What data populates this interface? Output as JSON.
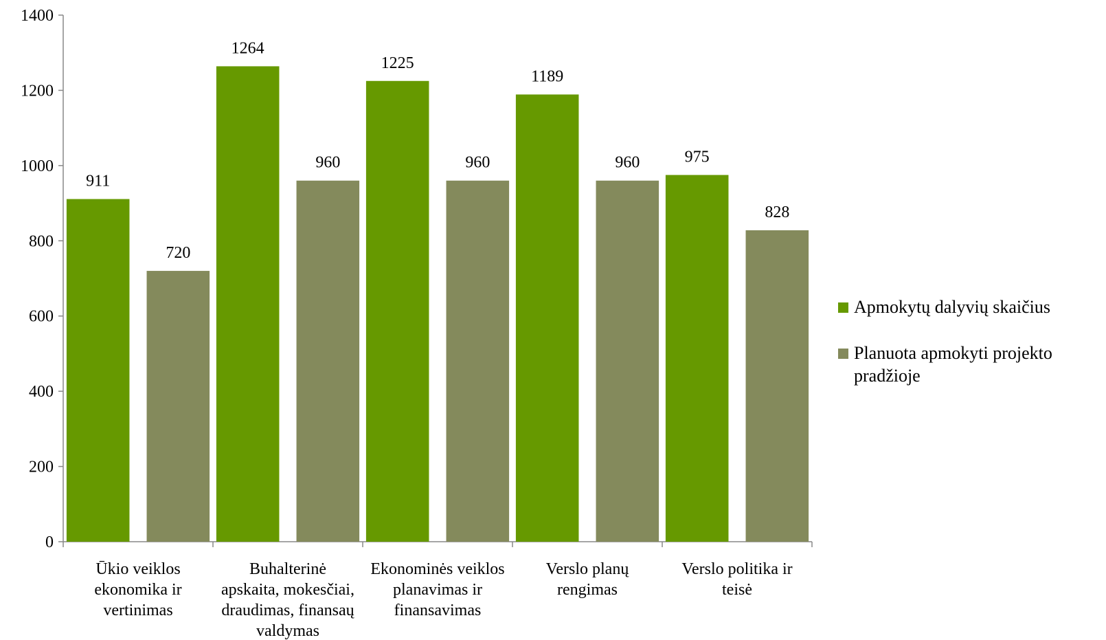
{
  "chart_data": {
    "type": "bar",
    "title": "",
    "xlabel": "",
    "ylabel": "",
    "ylim": [
      0,
      1400
    ],
    "yticks": [
      0,
      200,
      400,
      600,
      800,
      1000,
      1200,
      1400
    ],
    "grid": false,
    "legend_position": "right",
    "categories": [
      [
        "Ūkio veiklos",
        "ekonomika ir",
        "vertinimas"
      ],
      [
        "Buhalterinė",
        "apskaita, mokesčiai,",
        "draudimas, finansaų",
        "valdymas"
      ],
      [
        "Ekonominės veiklos",
        "planavimas ir",
        "finansavimas"
      ],
      [
        "Verslo planų",
        "rengimas"
      ],
      [
        "Verslo politika ir",
        "teisė"
      ]
    ],
    "series": [
      {
        "name": "Apmokytų dalyvių skaičius",
        "color": "#669900",
        "values": [
          911,
          1264,
          1225,
          1189,
          975
        ]
      },
      {
        "name_lines": [
          "Planuota apmokyti projekto",
          "pradžioje"
        ],
        "color": "#848A5C",
        "values": [
          720,
          960,
          960,
          960,
          828
        ]
      }
    ]
  }
}
